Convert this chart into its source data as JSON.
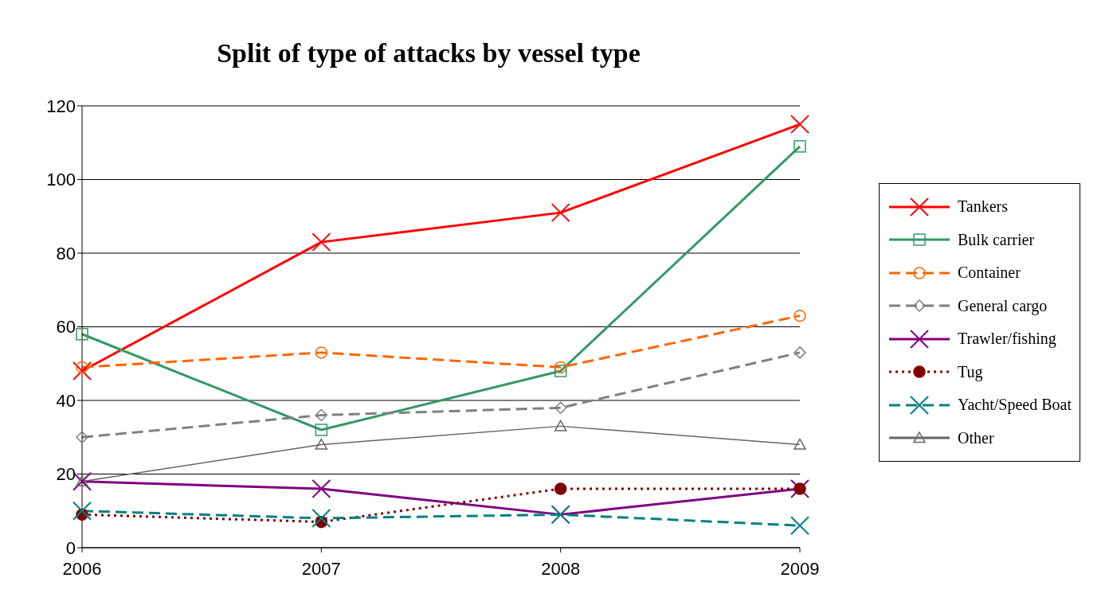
{
  "chart_data": {
    "type": "line",
    "title": "Split of type of attacks by vessel type",
    "categories": [
      "2006",
      "2007",
      "2008",
      "2009"
    ],
    "ylim": [
      0,
      120
    ],
    "yticks": [
      0,
      20,
      40,
      60,
      80,
      100,
      120
    ],
    "grid": "y",
    "legend": "right",
    "series": [
      {
        "name": "Tankers",
        "color": "#ff0000",
        "marker": "cross",
        "line_style": "solid",
        "values": [
          48,
          83,
          91,
          115
        ]
      },
      {
        "name": "Bulk carrier",
        "color": "#339966",
        "marker": "square",
        "line_style": "solid",
        "values": [
          58,
          32,
          48,
          109
        ]
      },
      {
        "name": "Container",
        "color": "#ff6600",
        "marker": "circle",
        "line_style": "dashed",
        "values": [
          49,
          53,
          49,
          63
        ]
      },
      {
        "name": "General cargo",
        "color": "#808080",
        "marker": "diamond",
        "line_style": "dashed",
        "values": [
          30,
          36,
          38,
          53
        ]
      },
      {
        "name": "Trawler/fishing",
        "color": "#800080",
        "marker": "cross",
        "line_style": "solid",
        "values": [
          18,
          16,
          9,
          16
        ]
      },
      {
        "name": "Tug",
        "color": "#800000",
        "marker": "circle",
        "line_style": "dotted",
        "values": [
          9,
          7,
          16,
          16
        ]
      },
      {
        "name": "Yacht/Speed Boat",
        "color": "#008080",
        "marker": "cross",
        "line_style": "dashed",
        "values": [
          10,
          8,
          9,
          6
        ]
      },
      {
        "name": "Other",
        "color": "#666666",
        "marker": "triangle",
        "line_style": "solid",
        "values": [
          18,
          28,
          33,
          28
        ]
      }
    ]
  }
}
